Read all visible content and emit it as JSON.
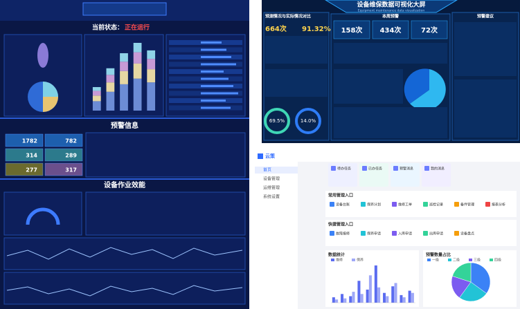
{
  "left_dashboard": {
    "status_label": "当前状态：",
    "status_value": "正在运行",
    "stack_chart": {
      "series": [
        {
          "color": "#6c8cd5",
          "values": [
            10,
            20,
            28,
            34,
            30
          ]
        },
        {
          "color": "#e6d7a3",
          "values": [
            6,
            10,
            14,
            16,
            14
          ]
        },
        {
          "color": "#c79ad6",
          "values": [
            5,
            8,
            10,
            12,
            11
          ]
        },
        {
          "color": "#8fd3e8",
          "values": [
            4,
            7,
            9,
            10,
            9
          ]
        }
      ]
    },
    "warning_title": "预警信息",
    "kpis": [
      "1782",
      "782",
      "314",
      "289",
      "277",
      "317"
    ],
    "efficiency_title": "设备作业效能"
  },
  "top_dashboard": {
    "title": "设备维保数据可视化大屏",
    "subtitle": "Equipment maintenance data visualization",
    "panel_compare": "预测情况与实际情况对比",
    "compare_values": [
      "664次",
      "91.32%"
    ],
    "panel_weekly": "本周预警",
    "weekly_values": [
      "158次",
      "434次",
      "72次"
    ],
    "panel_advice": "预警建议",
    "gauges": [
      "69.5%",
      "14.0%"
    ]
  },
  "admin": {
    "logo": "云策",
    "sidebar": [
      "首页",
      "设备管理",
      "运维管理",
      "系统设置"
    ],
    "quick_cards": [
      "待办任务",
      "已办任务",
      "预警消息",
      "我的消息"
    ],
    "section_common": "常用管理入口",
    "common_links": [
      "设备台账",
      "保养计划",
      "维修工单",
      "巡检记录",
      "备件管理",
      "报表分析"
    ],
    "section_quick": "快捷管理入口",
    "quick_links": [
      "故障报修",
      "保养申请",
      "入库申请",
      "出库申请",
      "设备盘点"
    ],
    "bar_chart": {
      "title": "数据统计",
      "series": [
        {
          "name": "维修",
          "color": "#5b6cf0",
          "values": [
            5,
            8,
            6,
            20,
            12,
            34,
            9,
            15,
            7,
            11
          ]
        },
        {
          "name": "保养",
          "color": "#9fa8f7",
          "values": [
            3,
            4,
            10,
            8,
            25,
            14,
            6,
            18,
            5,
            9
          ]
        }
      ]
    },
    "pie_chart": {
      "title": "预警数量占比",
      "slices": [
        {
          "name": "一级",
          "color": "#3b82f6",
          "value": 35
        },
        {
          "name": "二级",
          "color": "#22c3d6",
          "value": 25
        },
        {
          "name": "三级",
          "color": "#7c5cf0",
          "value": 20
        },
        {
          "name": "四级",
          "color": "#34d399",
          "value": 20
        }
      ]
    }
  }
}
